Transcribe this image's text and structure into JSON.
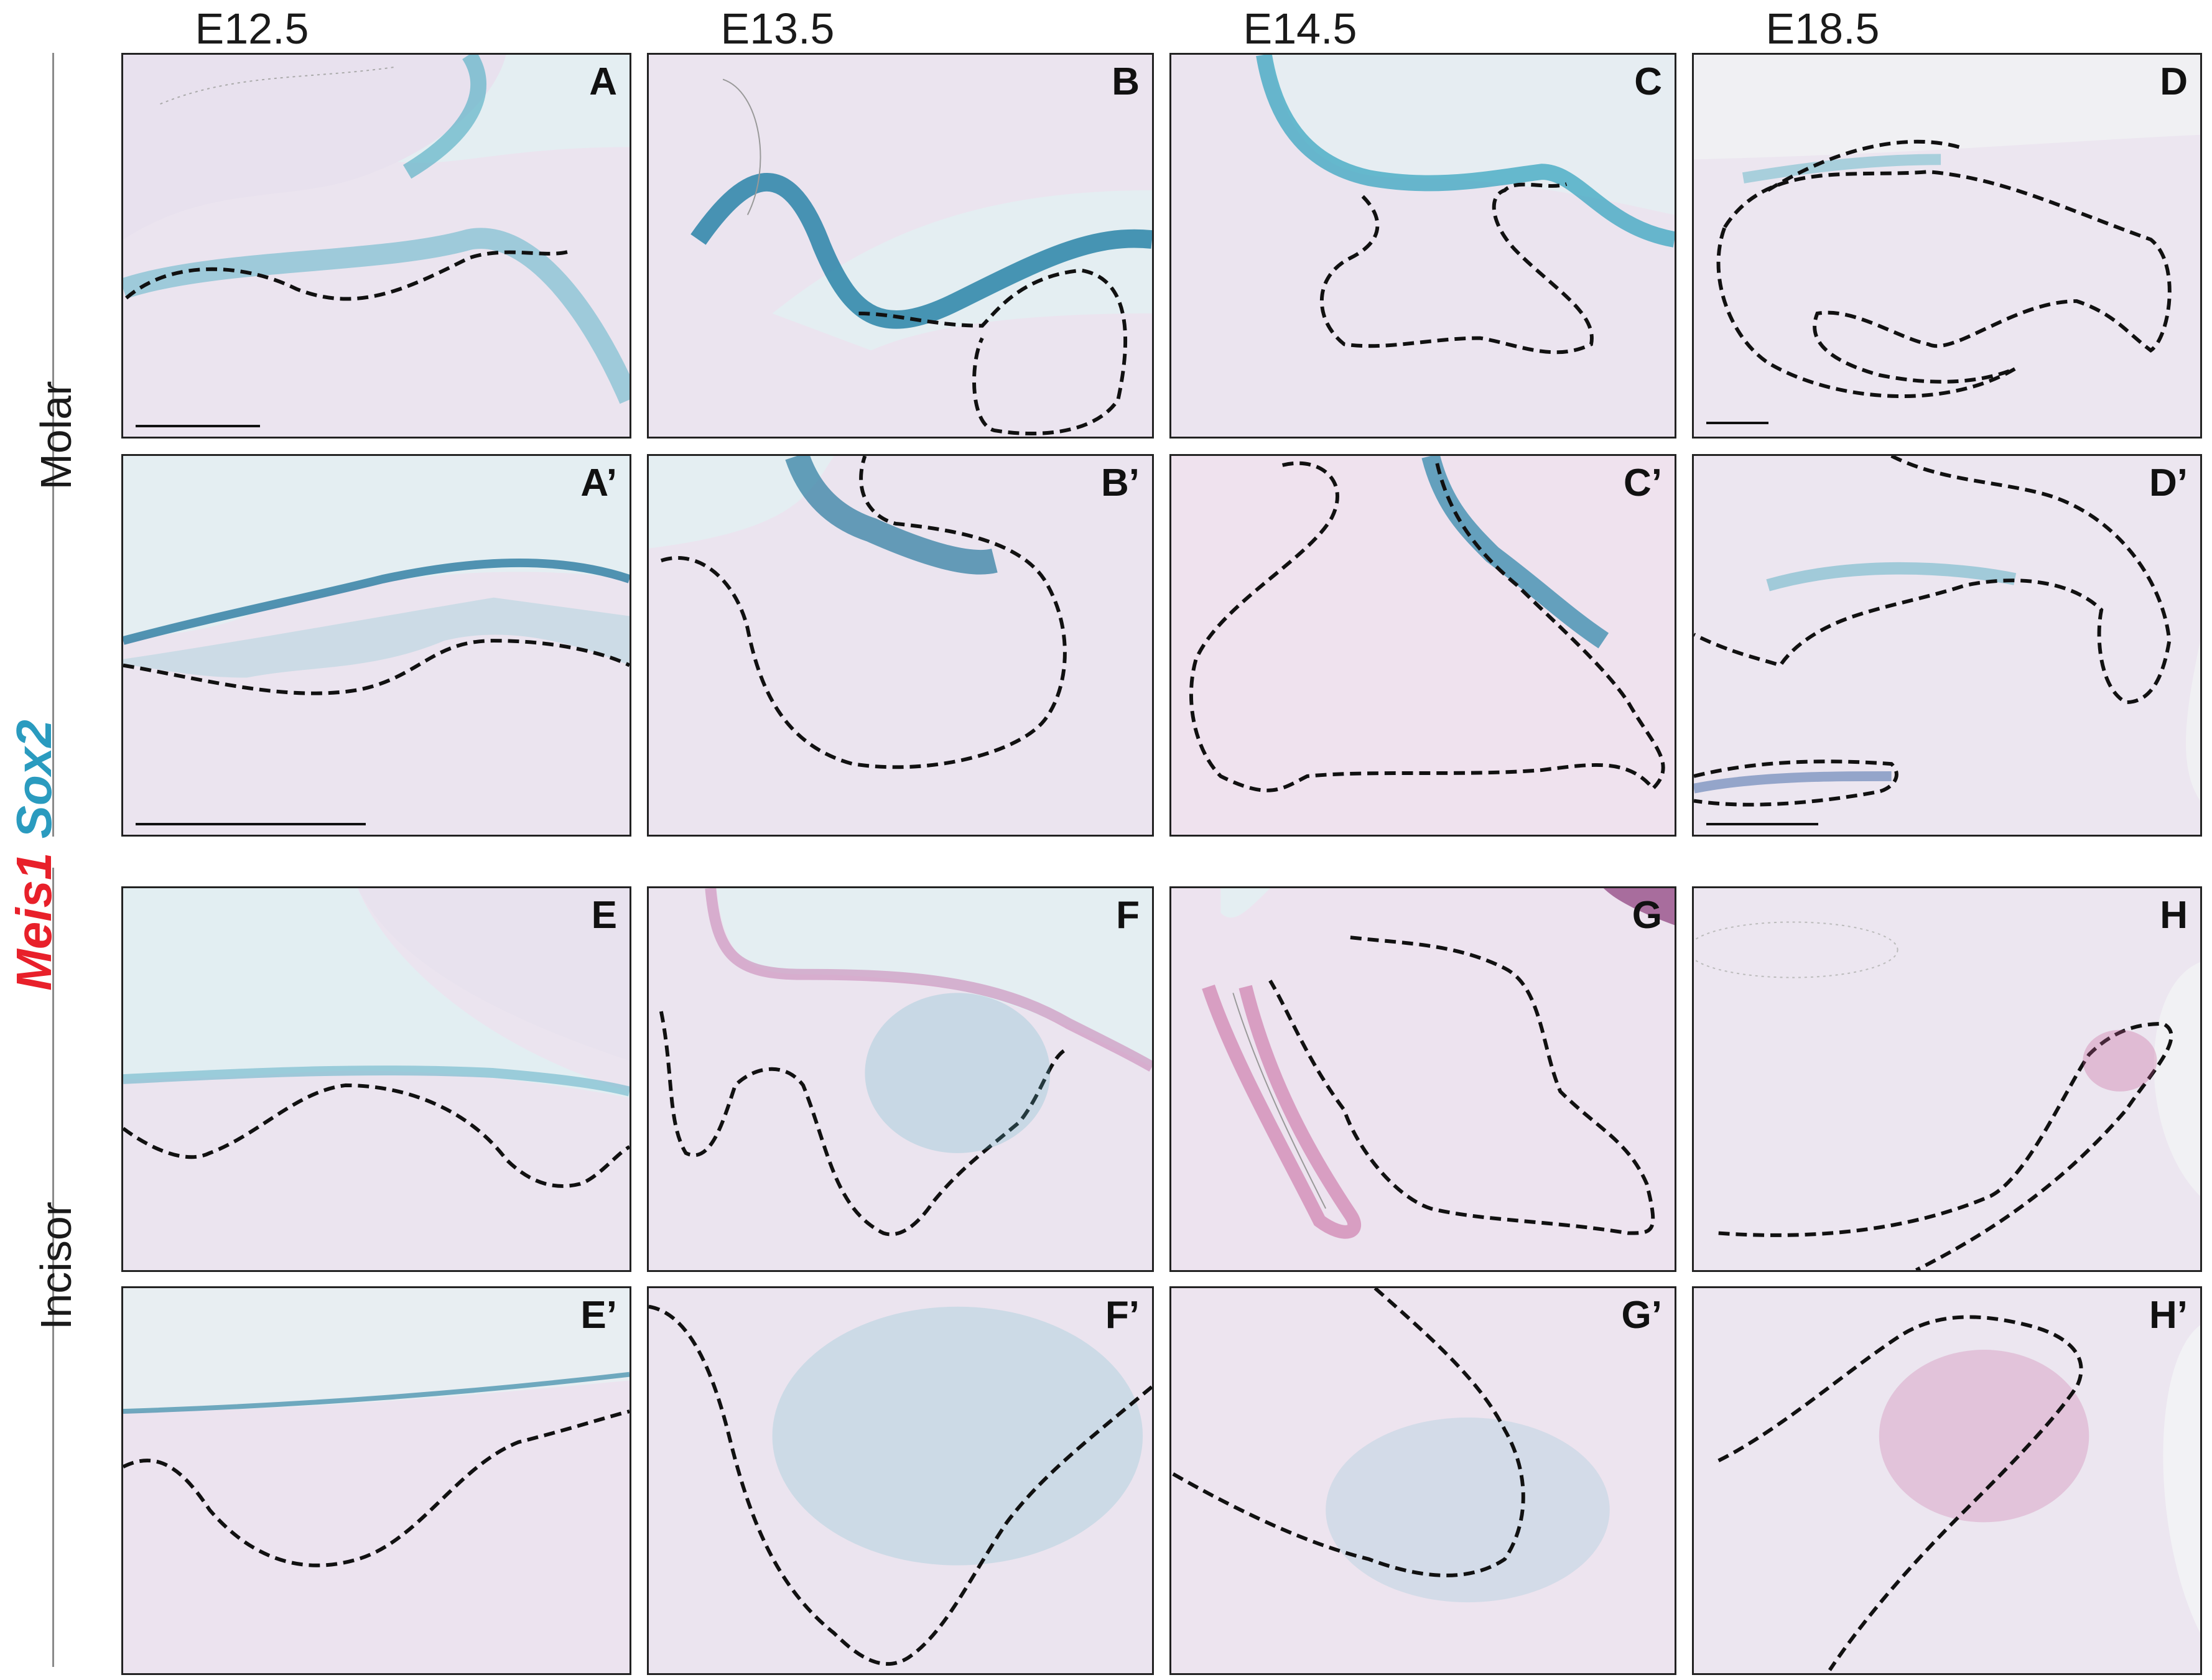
{
  "columns": [
    "E12.5",
    "E13.5",
    "E14.5",
    "E18.5"
  ],
  "rows": {
    "molar": "Molar",
    "incisor": "Incisor"
  },
  "legend": {
    "gene1": "Meis1",
    "gene2": "Sox2",
    "gene1_color": "#e8202a",
    "gene2_color": "#2a9bbf"
  },
  "panels": {
    "A": "A",
    "B": "B",
    "C": "C",
    "D": "D",
    "A2": "A’",
    "B2": "B’",
    "C2": "C’",
    "D2": "D’",
    "E": "E",
    "F": "F",
    "G": "G",
    "H": "H",
    "E2": "E’",
    "F2": "F’",
    "G2": "G’",
    "H2": "H’"
  },
  "colors": {
    "tissue": "#ece6f0",
    "lumen": "#e2ecf0",
    "sox2_stain": "#3aa6c0",
    "meis1_stain": "#c4508a"
  }
}
